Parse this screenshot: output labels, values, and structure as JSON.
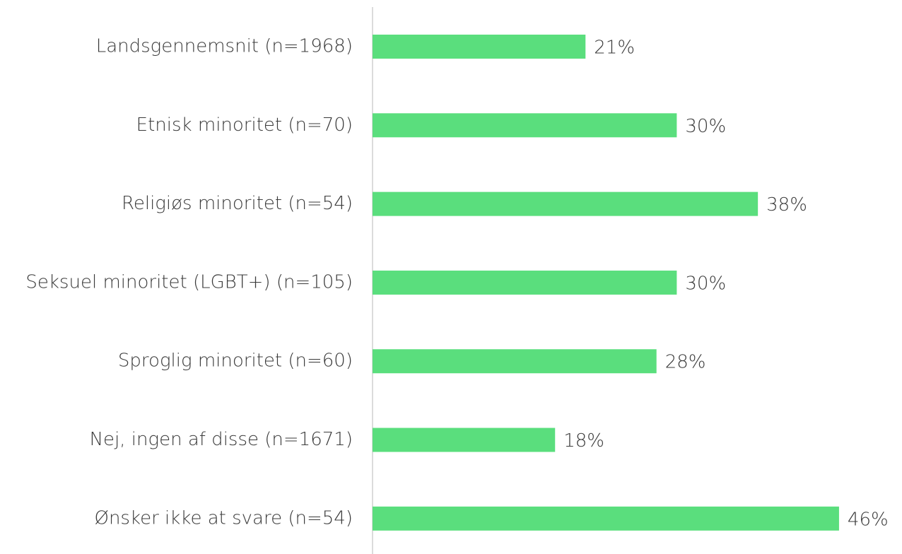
{
  "chart_data": {
    "type": "bar",
    "orientation": "horizontal",
    "categories": [
      "Landsgennemsnit (n=1968)",
      "Etnisk minoritet (n=70)",
      "Religiøs minoritet (n=54)",
      "Seksuel minoritet (LGBT+) (n=105)",
      "Sproglig minoritet (n=60)",
      "Nej, ingen af disse (n=1671)",
      "Ønsker ikke at svare (n=54)"
    ],
    "values": [
      21,
      30,
      38,
      30,
      28,
      18,
      46
    ],
    "value_labels": [
      "21%",
      "30%",
      "38%",
      "30%",
      "28%",
      "18%",
      "46%"
    ],
    "color": "#5ade7d",
    "xlim": [
      0,
      52
    ]
  }
}
